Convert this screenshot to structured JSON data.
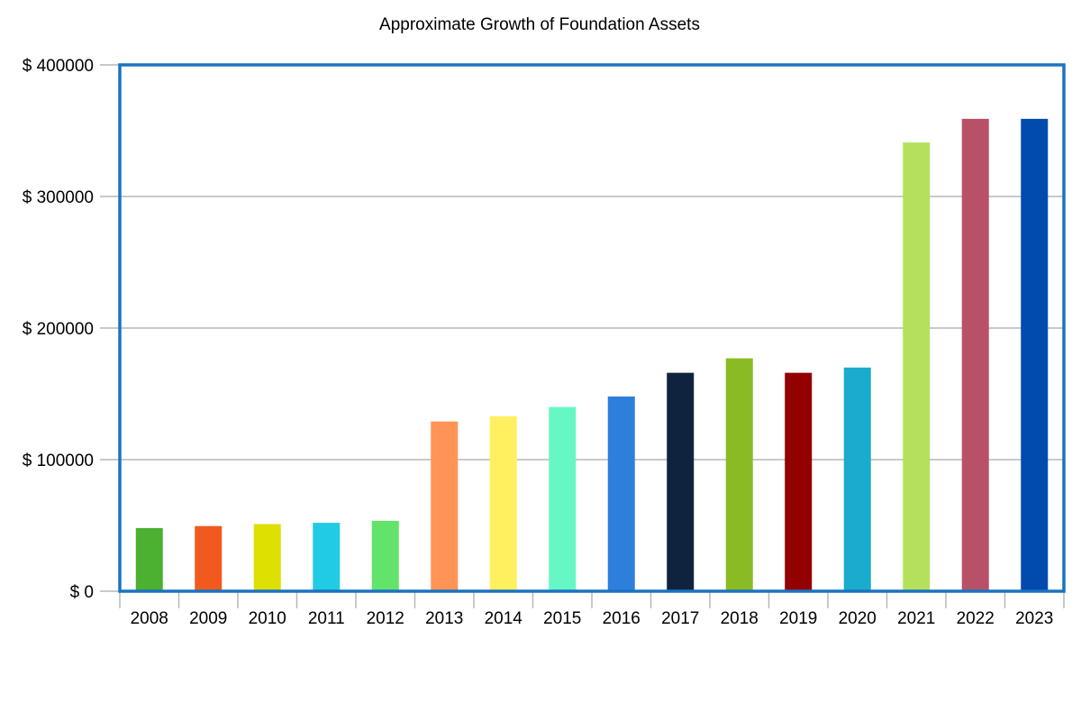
{
  "chart_data": {
    "type": "bar",
    "title": "Approximate Growth of Foundation Assets",
    "xlabel": "",
    "ylabel": "",
    "ytick_prefix": "$ ",
    "yticks": [
      0,
      100000,
      200000,
      300000,
      400000
    ],
    "ylim": [
      0,
      400000
    ],
    "grid": true,
    "legend": "none",
    "categories": [
      "2008",
      "2009",
      "2010",
      "2011",
      "2012",
      "2013",
      "2014",
      "2015",
      "2016",
      "2017",
      "2018",
      "2019",
      "2020",
      "2021",
      "2022",
      "2023"
    ],
    "values": [
      48000,
      49500,
      51000,
      52000,
      53500,
      129000,
      133000,
      140000,
      148000,
      166000,
      177000,
      166000,
      170000,
      341000,
      359000,
      359000
    ],
    "bar_colors": [
      "#4cb030",
      "#f05a1e",
      "#dde000",
      "#22cbe4",
      "#62e46a",
      "#ff9455",
      "#fff060",
      "#66f8c4",
      "#2e7fdc",
      "#10233e",
      "#8bbb22",
      "#920000",
      "#1aaccc",
      "#b4e05c",
      "#b85068",
      "#004bad"
    ],
    "frame_color": "#1a73c1",
    "grid_color": "#b7b7b7"
  }
}
